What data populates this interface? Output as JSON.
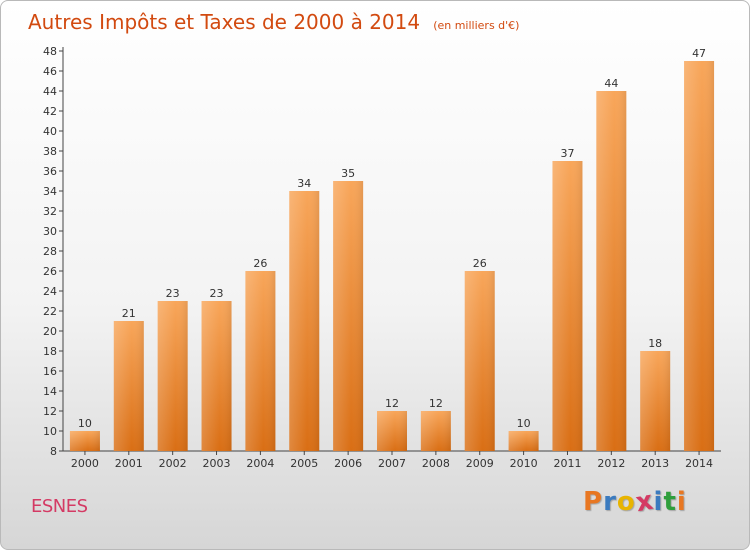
{
  "chart_data": {
    "type": "bar",
    "title": "Autres Impôts et Taxes de 2000 à 2014",
    "subtitle": "(en milliers d'€)",
    "categories": [
      "2000",
      "2001",
      "2002",
      "2003",
      "2004",
      "2005",
      "2006",
      "2007",
      "2008",
      "2009",
      "2010",
      "2011",
      "2012",
      "2013",
      "2014"
    ],
    "values": [
      10,
      21,
      23,
      23,
      26,
      34,
      35,
      12,
      12,
      26,
      10,
      37,
      44,
      18,
      47
    ],
    "ylim": [
      8,
      48
    ],
    "ytick_step": 2,
    "grid": false,
    "bar_color": "#f0892e"
  },
  "footer": {
    "town": "ESNES",
    "logo_letters": [
      "P",
      "r",
      "o",
      "x",
      "i",
      "t",
      "i"
    ],
    "logo_colors": [
      "#e87722",
      "#3b7bbf",
      "#e8b400",
      "#d43a64",
      "#3b7bbf",
      "#2e9e3c",
      "#e87722"
    ]
  }
}
